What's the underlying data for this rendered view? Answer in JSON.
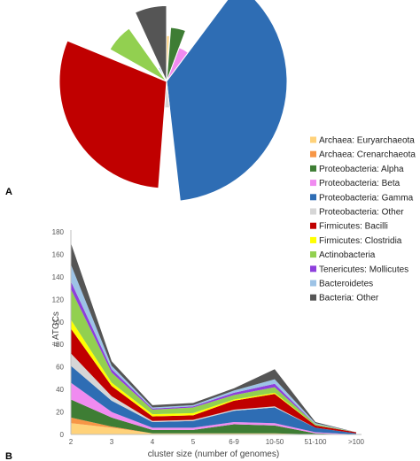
{
  "panel_labels": [
    "A",
    "B"
  ],
  "colors": {
    "Archaea: Euryarchaeota": "#ffd27a",
    "Archaea: Crenarchaeota": "#f79646",
    "Proteobacteria: Alpha": "#3e7d34",
    "Proteobacteria: Beta": "#f08bf0",
    "Proteobacteria: Gamma": "#2e6db4",
    "Proteobacteria: Other": "#d6d6d6",
    "Firmicutes: Bacilli": "#c00000",
    "Firmicutes: Clostridia": "#ffff00",
    "Actinobacteria": "#92d050",
    "Tenericutes: Mollicutes": "#8e3fdc",
    "Bacteroidetes": "#9dc3e6",
    "Bacteria: Other": "#555555"
  },
  "chart_data": [
    {
      "type": "pie",
      "subtype": "polar-area (variable radius wedges)",
      "panel": "A",
      "categories": [
        "Archaea: Euryarchaeota",
        "Archaea: Crenarchaeota",
        "Proteobacteria: Alpha",
        "Proteobacteria: Beta",
        "Proteobacteria: Gamma",
        "Proteobacteria: Other",
        "Firmicutes: Bacilli",
        "Firmicutes: Clostridia",
        "Actinobacteria",
        "Tenericutes: Mollicutes",
        "Bacteroidetes",
        "Bacteria: Other"
      ],
      "angle_share": [
        0.01,
        0.002,
        0.045,
        0.045,
        0.38,
        0.03,
        0.3,
        0.02,
        0.07,
        0.01,
        0.02,
        0.068
      ],
      "relative_radius": [
        0.38,
        0.1,
        0.45,
        0.3,
        1.0,
        0.22,
        0.89,
        0.08,
        0.54,
        0.13,
        0.13,
        0.63
      ]
    },
    {
      "type": "area",
      "subtype": "stacked",
      "panel": "B",
      "categories": [
        "2",
        "3",
        "4",
        "5",
        "6-9",
        "10-50",
        "51-100",
        ">100"
      ],
      "xlabel": "cluster size (number of genomes)",
      "ylabel": "# ATGCs",
      "ylim": [
        0,
        180
      ],
      "yticks": [
        0,
        20,
        40,
        60,
        80,
        100,
        120,
        140,
        160,
        180
      ],
      "grid": false,
      "series": [
        {
          "name": "Archaea: Euryarchaeota",
          "values": [
            10,
            6,
            1,
            1,
            1,
            1,
            0,
            0
          ]
        },
        {
          "name": "Archaea: Crenarchaeota",
          "values": [
            5,
            1,
            0,
            0,
            0,
            0,
            0,
            0
          ]
        },
        {
          "name": "Proteobacteria: Alpha",
          "values": [
            16,
            8,
            3,
            3,
            8,
            7,
            1,
            0
          ]
        },
        {
          "name": "Proteobacteria: Beta",
          "values": [
            15,
            5,
            2,
            2,
            2,
            2,
            1,
            0
          ]
        },
        {
          "name": "Proteobacteria: Gamma",
          "values": [
            15,
            10,
            5,
            6,
            10,
            14,
            4,
            1
          ]
        },
        {
          "name": "Proteobacteria: Other",
          "values": [
            11,
            4,
            1,
            1,
            1,
            1,
            0,
            0
          ]
        },
        {
          "name": "Firmicutes: Bacilli",
          "values": [
            22,
            9,
            4,
            4,
            8,
            11,
            2,
            1
          ]
        },
        {
          "name": "Firmicutes: Clostridia",
          "values": [
            8,
            3,
            2,
            2,
            1,
            1,
            0,
            0
          ]
        },
        {
          "name": "Actinobacteria",
          "values": [
            27,
            9,
            4,
            5,
            4,
            5,
            1,
            0
          ]
        },
        {
          "name": "Tenericutes: Mollicutes",
          "values": [
            7,
            3,
            1,
            1,
            2,
            3,
            0,
            0
          ]
        },
        {
          "name": "Bacteroidetes",
          "values": [
            15,
            3,
            1,
            1,
            2,
            4,
            1,
            0
          ]
        },
        {
          "name": "Bacteria: Other",
          "values": [
            19,
            4,
            2,
            2,
            2,
            9,
            1,
            0
          ]
        }
      ]
    }
  ]
}
